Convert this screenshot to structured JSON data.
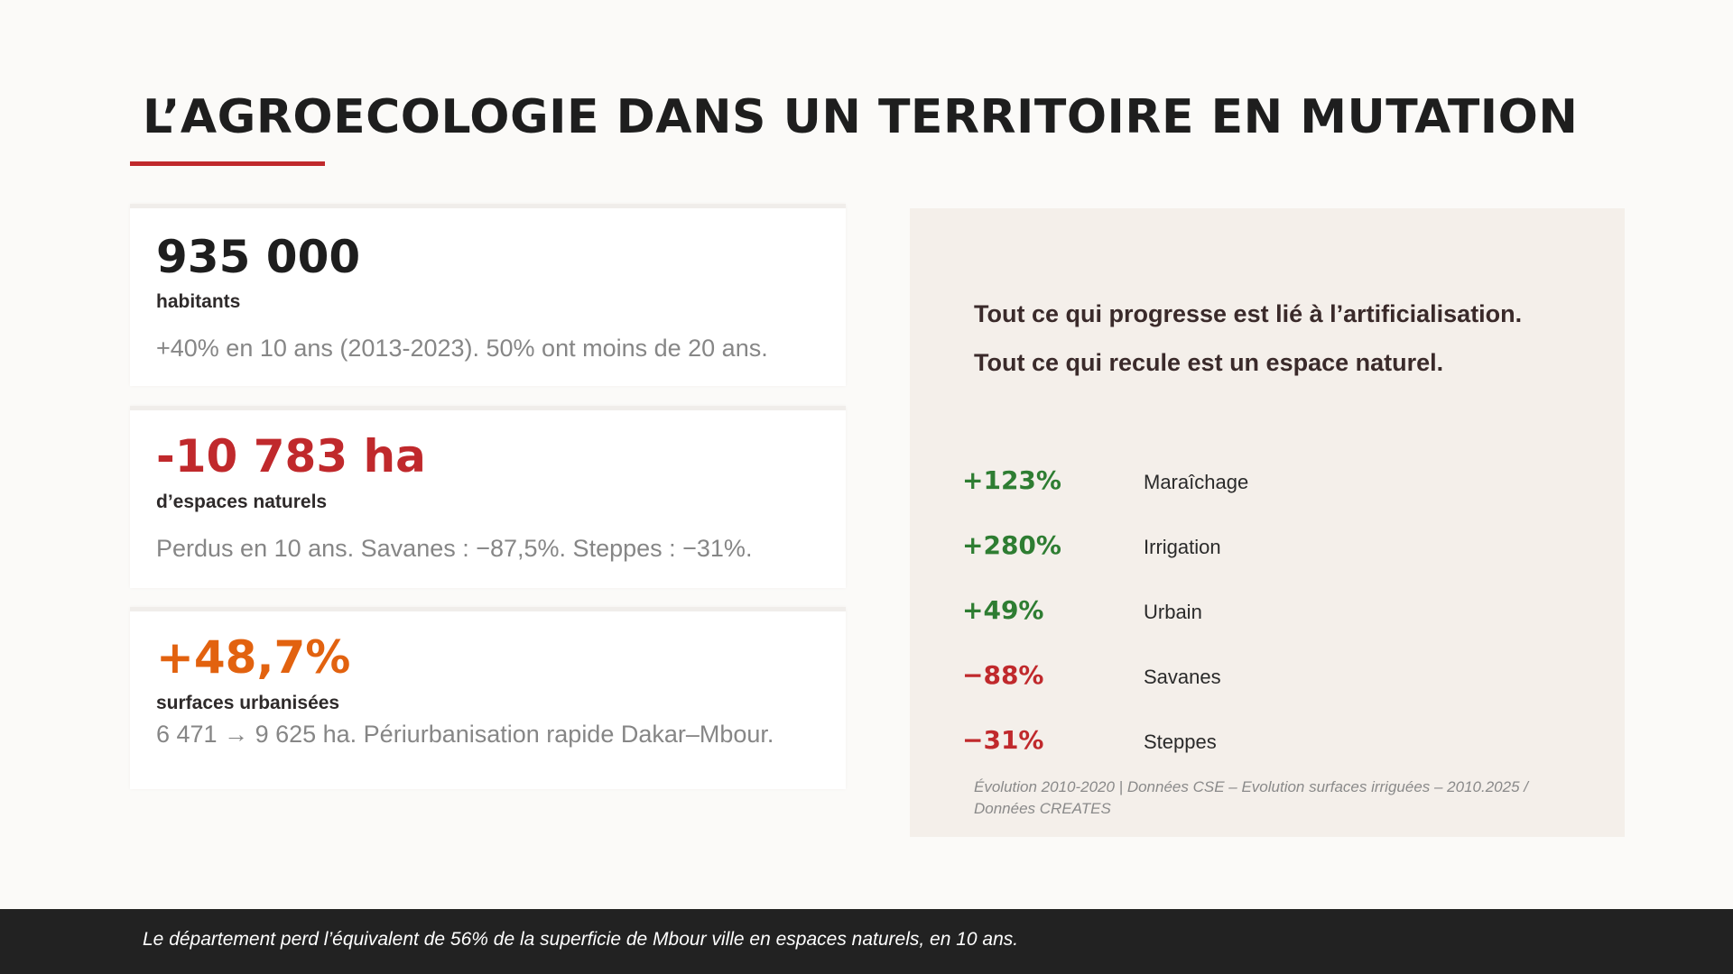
{
  "title": "L’AGROECOLOGIE DANS UN TERRITOIRE EN MUTATION",
  "colors": {
    "accent_red": "#c0292c",
    "stat_dark": "#1e1e1e",
    "stat_red": "#c0292c",
    "stat_orange": "#e2620f",
    "positive_green": "#2e7d32",
    "negative_red": "#c0292c"
  },
  "cards": [
    {
      "stat": "935 000",
      "label": "habitants",
      "description": "+40% en 10 ans (2013-2023). 50% ont moins de 20 ans."
    },
    {
      "stat": "-10 783 ha",
      "label": "d’espaces naturels",
      "description": "Perdus en 10 ans. Savanes : −87,5%. Steppes : −31%."
    },
    {
      "stat": "+48,7%",
      "label": "surfaces urbanisées",
      "description": "6 471 → 9 625 ha. Périurbanisation rapide Dakar–Mbour."
    }
  ],
  "panel": {
    "headline_1": "Tout ce qui progresse est lié à l’artificialisation.",
    "headline_2": "Tout ce qui recule est un espace naturel.",
    "evolutions": [
      {
        "value": "+123%",
        "label": "Maraîchage",
        "trend": "up"
      },
      {
        "value": "+280%",
        "label": "Irrigation",
        "trend": "up"
      },
      {
        "value": "+49%",
        "label": "Urbain",
        "trend": "up"
      },
      {
        "value": "−88%",
        "label": "Savanes",
        "trend": "down"
      },
      {
        "value": "−31%",
        "label": "Steppes",
        "trend": "down"
      }
    ],
    "source": "Évolution 2010-2020  |  Données CSE – Evolution surfaces irriguées – 2010.2025 / Données CREATES"
  },
  "footer": "Le département perd l’équivalent de 56% de la superficie de Mbour ville en espaces naturels, en 10 ans."
}
